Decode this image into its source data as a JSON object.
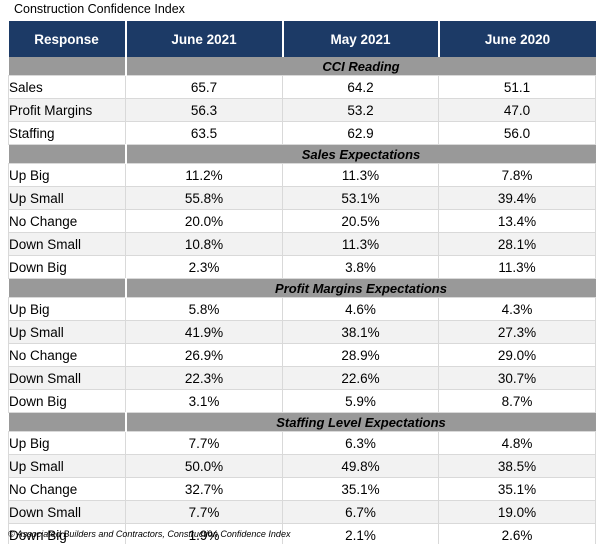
{
  "chart_data": {
    "type": "table",
    "title": "Construction Confidence Index",
    "columns": [
      "Response",
      "June 2021",
      "May 2021",
      "June 2020"
    ],
    "sections": [
      {
        "heading": "CCI Reading",
        "rows": [
          [
            "Sales",
            "65.7",
            "64.2",
            "51.1"
          ],
          [
            "Profit Margins",
            "56.3",
            "53.2",
            "47.0"
          ],
          [
            "Staffing",
            "63.5",
            "62.9",
            "56.0"
          ]
        ]
      },
      {
        "heading": "Sales Expectations",
        "rows": [
          [
            "Up Big",
            "11.2%",
            "11.3%",
            "7.8%"
          ],
          [
            "Up Small",
            "55.8%",
            "53.1%",
            "39.4%"
          ],
          [
            "No Change",
            "20.0%",
            "20.5%",
            "13.4%"
          ],
          [
            "Down Small",
            "10.8%",
            "11.3%",
            "28.1%"
          ],
          [
            "Down Big",
            "2.3%",
            "3.8%",
            "11.3%"
          ]
        ]
      },
      {
        "heading": "Profit Margins Expectations",
        "rows": [
          [
            "Up Big",
            "5.8%",
            "4.6%",
            "4.3%"
          ],
          [
            "Up Small",
            "41.9%",
            "38.1%",
            "27.3%"
          ],
          [
            "No Change",
            "26.9%",
            "28.9%",
            "29.0%"
          ],
          [
            "Down Small",
            "22.3%",
            "22.6%",
            "30.7%"
          ],
          [
            "Down Big",
            "3.1%",
            "5.9%",
            "8.7%"
          ]
        ]
      },
      {
        "heading": "Staffing Level Expectations",
        "rows": [
          [
            "Up Big",
            "7.7%",
            "6.3%",
            "4.8%"
          ],
          [
            "Up Small",
            "50.0%",
            "49.8%",
            "38.5%"
          ],
          [
            "No Change",
            "32.7%",
            "35.1%",
            "35.1%"
          ],
          [
            "Down Small",
            "7.7%",
            "6.7%",
            "19.0%"
          ],
          [
            "Down Big",
            "1.9%",
            "2.1%",
            "2.6%"
          ]
        ]
      }
    ],
    "source_note": "© Associated Builders and Contractors, Construction Confidence Index"
  },
  "colors": {
    "header_bg": "#1c3a66",
    "header_text": "#ffffff",
    "band_bg": "#999999",
    "stripe": "#f2f2f2",
    "grid": "#d9d9d9"
  }
}
